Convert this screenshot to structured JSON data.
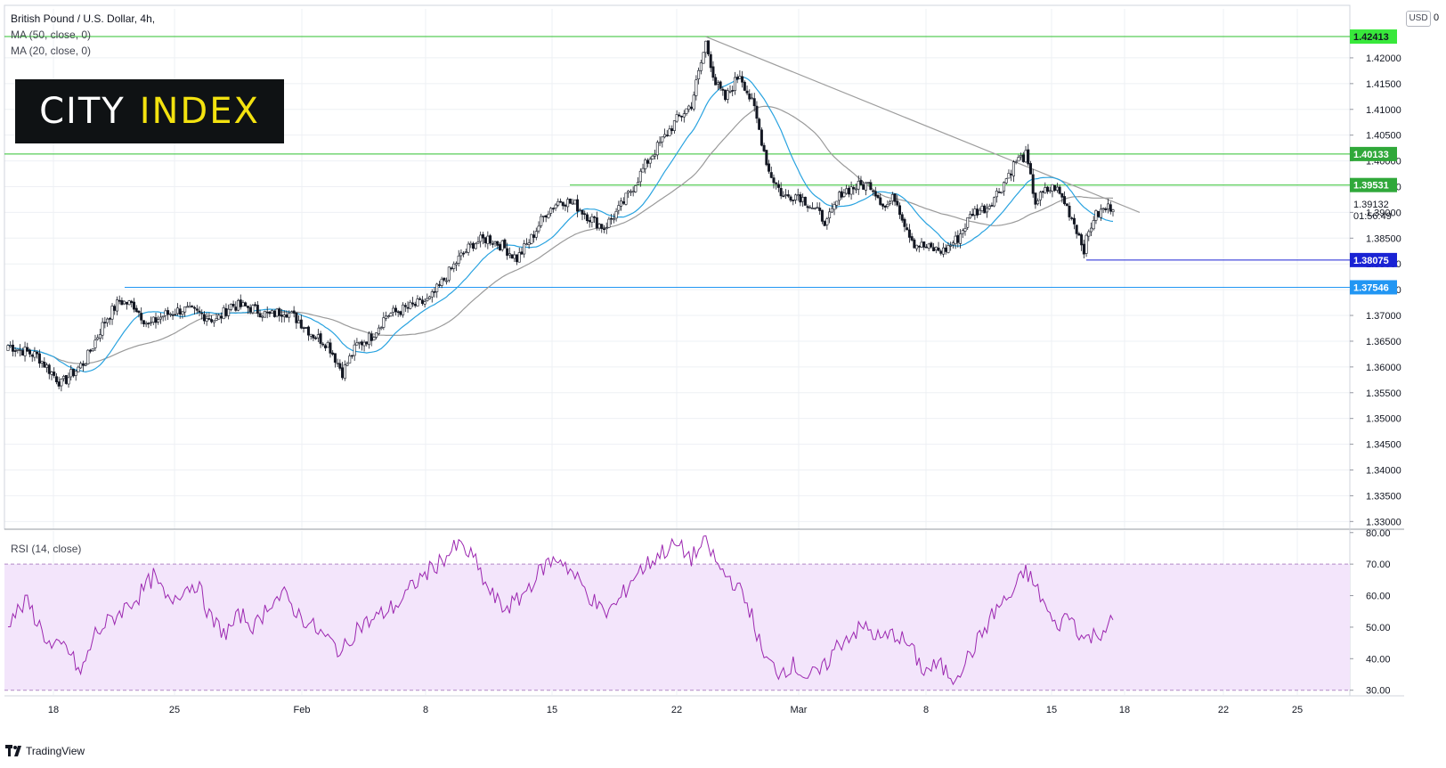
{
  "header": {
    "title": "British Pound / U.S. Dollar, 4h,",
    "indicators": [
      "MA (50, close, 0)",
      "MA (20, close, 0)"
    ],
    "currency_button": "USD",
    "currency_suffix": "0"
  },
  "logo": {
    "text_white": "CITY",
    "text_yellow": "INDEX"
  },
  "rsi_pane": {
    "label": "RSI (14, close)"
  },
  "footer": {
    "brand": "TradingView"
  },
  "colors": {
    "ma20": "#29a3e0",
    "ma50": "#9a9a9a",
    "rsi": "#9c27b0",
    "rsi_band": "#f3e5fb",
    "resistance": "#2fc12f",
    "support": "#2196f3",
    "low_line": "#1a23d4",
    "candle": "#131722"
  },
  "chart_data": [
    {
      "type": "candlestick",
      "title": "British Pound / U.S. Dollar, 4h,",
      "ylim": [
        1.3285,
        1.4295
      ],
      "y_ticks": [
        "1.42000",
        "1.41500",
        "1.41000",
        "1.40500",
        "1.40000",
        "1.39500",
        "1.39000",
        "1.38500",
        "1.38000",
        "1.37500",
        "1.37000",
        "1.36500",
        "1.36000",
        "1.35500",
        "1.35000",
        "1.34500",
        "1.34000",
        "1.33500",
        "1.33000"
      ],
      "x_labels": [
        "18",
        "25",
        "Feb",
        "8",
        "15",
        "22",
        "Mar",
        "8",
        "15",
        "18",
        "22",
        "25"
      ],
      "close_key_points": [
        [
          0,
          1.3642
        ],
        [
          12,
          1.3622
        ],
        [
          22,
          1.3567
        ],
        [
          32,
          1.3612
        ],
        [
          40,
          1.369
        ],
        [
          46,
          1.3728
        ],
        [
          52,
          1.372
        ],
        [
          58,
          1.368
        ],
        [
          64,
          1.37
        ],
        [
          72,
          1.3712
        ],
        [
          80,
          1.3702
        ],
        [
          86,
          1.369
        ],
        [
          92,
          1.372
        ],
        [
          100,
          1.3715
        ],
        [
          108,
          1.37
        ],
        [
          114,
          1.371
        ],
        [
          120,
          1.369
        ],
        [
          126,
          1.3662
        ],
        [
          132,
          1.3645
        ],
        [
          138,
          1.359
        ],
        [
          144,
          1.3642
        ],
        [
          150,
          1.366
        ],
        [
          156,
          1.37
        ],
        [
          162,
          1.371
        ],
        [
          168,
          1.372
        ],
        [
          174,
          1.373
        ],
        [
          180,
          1.377
        ],
        [
          186,
          1.381
        ],
        [
          192,
          1.384
        ],
        [
          198,
          1.385
        ],
        [
          204,
          1.3835
        ],
        [
          210,
          1.381
        ],
        [
          216,
          1.385
        ],
        [
          222,
          1.39
        ],
        [
          228,
          1.3925
        ],
        [
          234,
          1.3915
        ],
        [
          240,
          1.389
        ],
        [
          246,
          1.387
        ],
        [
          252,
          1.3905
        ],
        [
          258,
          1.395
        ],
        [
          264,
          1.4
        ],
        [
          270,
          1.404
        ],
        [
          276,
          1.408
        ],
        [
          282,
          1.411
        ],
        [
          288,
          1.423
        ],
        [
          292,
          1.415
        ],
        [
          296,
          1.412
        ],
        [
          302,
          1.417
        ],
        [
          308,
          1.41
        ],
        [
          314,
          1.398
        ],
        [
          320,
          1.393
        ],
        [
          326,
          1.3935
        ],
        [
          332,
          1.391
        ],
        [
          338,
          1.388
        ],
        [
          344,
          1.394
        ],
        [
          350,
          1.395
        ],
        [
          356,
          1.3955
        ],
        [
          362,
          1.391
        ],
        [
          366,
          1.393
        ],
        [
          370,
          1.388
        ],
        [
          374,
          1.384
        ],
        [
          380,
          1.383
        ],
        [
          386,
          1.3825
        ],
        [
          392,
          1.385
        ],
        [
          398,
          1.39
        ],
        [
          404,
          1.391
        ],
        [
          410,
          1.395
        ],
        [
          416,
          1.4
        ],
        [
          420,
          1.401
        ],
        [
          424,
          1.392
        ],
        [
          428,
          1.394
        ],
        [
          432,
          1.395
        ],
        [
          436,
          1.392
        ],
        [
          440,
          1.388
        ],
        [
          444,
          1.383
        ],
        [
          448,
          1.389
        ],
        [
          452,
          1.3905
        ],
        [
          456,
          1.3913
        ]
      ],
      "series": [
        {
          "name": "MA (50, close, 0)",
          "color": "#9a9a9a"
        },
        {
          "name": "MA (20, close, 0)",
          "color": "#29a3e0"
        }
      ],
      "horizontal_levels": [
        {
          "value": 1.42413,
          "label": "1.42413",
          "color": "#2fc12f"
        },
        {
          "value": 1.40133,
          "label": "1.40133",
          "color": "#2fc12f"
        },
        {
          "value": 1.39531,
          "label": "1.39531",
          "color": "#2fc12f"
        },
        {
          "value": 1.38075,
          "label": "1.38075",
          "color": "#1a23d4"
        },
        {
          "value": 1.37546,
          "label": "1.37546",
          "color": "#2196f3"
        }
      ],
      "last_price": {
        "value": "1.39132",
        "countdown": "01:56:49"
      },
      "trendline": {
        "from_price": 1.4241,
        "to_price": 1.39
      }
    },
    {
      "type": "line",
      "title": "RSI (14, close)",
      "ylim": [
        28.5,
        80.5
      ],
      "y_ticks": [
        "80.00",
        "70.00",
        "60.00",
        "50.00",
        "40.00",
        "30.00"
      ],
      "band": [
        30,
        70
      ],
      "rsi_key_points": [
        [
          0,
          52
        ],
        [
          8,
          58
        ],
        [
          18,
          43
        ],
        [
          24,
          44
        ],
        [
          30,
          35
        ],
        [
          36,
          48
        ],
        [
          42,
          52
        ],
        [
          48,
          56
        ],
        [
          54,
          60
        ],
        [
          60,
          66
        ],
        [
          66,
          58
        ],
        [
          72,
          62
        ],
        [
          78,
          64
        ],
        [
          84,
          52
        ],
        [
          90,
          48
        ],
        [
          96,
          54
        ],
        [
          102,
          50
        ],
        [
          108,
          58
        ],
        [
          114,
          60
        ],
        [
          120,
          54
        ],
        [
          126,
          50
        ],
        [
          132,
          46
        ],
        [
          138,
          42
        ],
        [
          144,
          50
        ],
        [
          150,
          52
        ],
        [
          156,
          55
        ],
        [
          162,
          58
        ],
        [
          168,
          64
        ],
        [
          174,
          68
        ],
        [
          180,
          72
        ],
        [
          186,
          76
        ],
        [
          192,
          72
        ],
        [
          198,
          62
        ],
        [
          204,
          56
        ],
        [
          210,
          58
        ],
        [
          216,
          64
        ],
        [
          222,
          70
        ],
        [
          228,
          72
        ],
        [
          234,
          66
        ],
        [
          240,
          60
        ],
        [
          246,
          54
        ],
        [
          252,
          58
        ],
        [
          258,
          66
        ],
        [
          264,
          70
        ],
        [
          270,
          74
        ],
        [
          276,
          76
        ],
        [
          282,
          72
        ],
        [
          288,
          77
        ],
        [
          294,
          68
        ],
        [
          300,
          64
        ],
        [
          306,
          56
        ],
        [
          312,
          40
        ],
        [
          318,
          36
        ],
        [
          324,
          38
        ],
        [
          330,
          34
        ],
        [
          336,
          36
        ],
        [
          342,
          44
        ],
        [
          348,
          48
        ],
        [
          354,
          50
        ],
        [
          360,
          46
        ],
        [
          366,
          48
        ],
        [
          372,
          44
        ],
        [
          378,
          36
        ],
        [
          384,
          38
        ],
        [
          390,
          34
        ],
        [
          396,
          40
        ],
        [
          402,
          48
        ],
        [
          408,
          56
        ],
        [
          414,
          60
        ],
        [
          420,
          68
        ],
        [
          426,
          60
        ],
        [
          432,
          50
        ],
        [
          438,
          54
        ],
        [
          444,
          46
        ],
        [
          450,
          48
        ],
        [
          456,
          52
        ]
      ]
    }
  ]
}
